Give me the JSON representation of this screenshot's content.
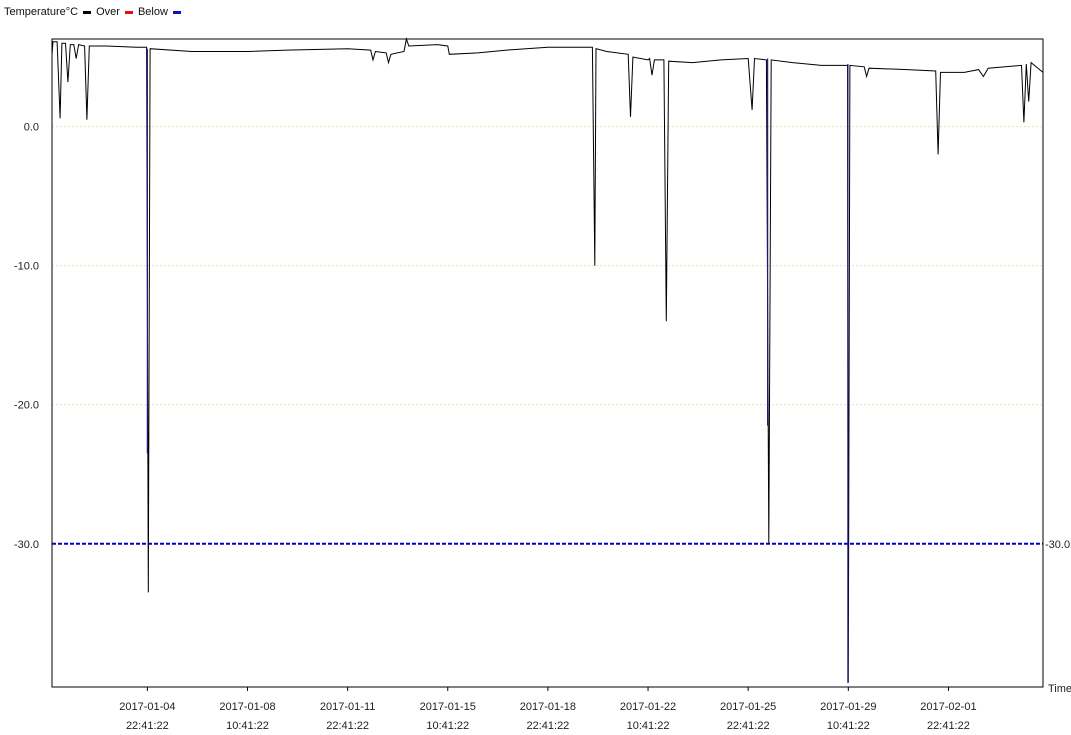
{
  "legend": {
    "label": "Temperature°C",
    "over_label": "Over",
    "below_label": "Below"
  },
  "colors": {
    "over": "#000000",
    "below": "#e01010",
    "below_swatch": "#1010c0",
    "grid": "#f5deb3",
    "threshold": "#0000c8",
    "axis": "#000000",
    "dip_series": "#1a1a80"
  },
  "chart_data": {
    "type": "line",
    "title": "",
    "xlabel": "Time",
    "ylabel": "Temperature°C",
    "ylim": [
      -40.3,
      6.3
    ],
    "xlim": [
      "2017-01-01 14:41",
      "2017-02-05 06:00"
    ],
    "grid": "horizontal dotted at 0, -10, -20",
    "y_ticks": [
      {
        "value": 0,
        "label": "0.0"
      },
      {
        "value": -10,
        "label": "-10.0"
      },
      {
        "value": -20,
        "label": "-20.0"
      },
      {
        "value": -30,
        "label": "-30.0"
      }
    ],
    "x_ticks": [
      {
        "date": "2017-01-04",
        "time": "22:41:22"
      },
      {
        "date": "2017-01-08",
        "time": "10:41:22"
      },
      {
        "date": "2017-01-11",
        "time": "22:41:22"
      },
      {
        "date": "2017-01-15",
        "time": "10:41:22"
      },
      {
        "date": "2017-01-18",
        "time": "22:41:22"
      },
      {
        "date": "2017-01-22",
        "time": "10:41:22"
      },
      {
        "date": "2017-01-25",
        "time": "22:41:22"
      },
      {
        "date": "2017-01-29",
        "time": "10:41:22"
      },
      {
        "date": "2017-02-01",
        "time": "22:41:22"
      }
    ],
    "threshold": {
      "value": -30.0,
      "label": "-30.0",
      "style": "dashed"
    },
    "series": [
      {
        "points": [
          [
            "2017-01-01 14:41",
            5.2
          ],
          [
            "2017-01-01 15:30",
            6.1
          ],
          [
            "2017-01-01 19:00",
            6.1
          ],
          [
            "2017-01-01 21:30",
            0.6
          ],
          [
            "2017-01-01 23:00",
            6.0
          ],
          [
            "2017-01-02 02:00",
            6.0
          ],
          [
            "2017-01-02 04:00",
            3.2
          ],
          [
            "2017-01-02 06:00",
            5.9
          ],
          [
            "2017-01-02 09:00",
            5.9
          ],
          [
            "2017-01-02 11:00",
            4.9
          ],
          [
            "2017-01-02 13:00",
            5.9
          ],
          [
            "2017-01-02 18:00",
            5.8
          ],
          [
            "2017-01-02 20:00",
            0.5
          ],
          [
            "2017-01-02 22:00",
            5.8
          ],
          [
            "2017-01-03 12:00",
            5.8
          ],
          [
            "2017-01-04 14:00",
            5.7
          ],
          [
            "2017-01-04 22:00",
            5.7
          ],
          [
            "2017-01-04 23:30",
            -33.5
          ],
          [
            "2017-01-05 01:00",
            5.6
          ],
          [
            "2017-01-06 12:00",
            5.4
          ],
          [
            "2017-01-08 10:41",
            5.4
          ],
          [
            "2017-01-09 20:00",
            5.5
          ],
          [
            "2017-01-11 22:41",
            5.6
          ],
          [
            "2017-01-12 18:00",
            5.5
          ],
          [
            "2017-01-12 20:00",
            4.8
          ],
          [
            "2017-01-12 22:00",
            5.4
          ],
          [
            "2017-01-13 07:00",
            5.3
          ],
          [
            "2017-01-13 09:00",
            4.6
          ],
          [
            "2017-01-13 11:00",
            5.2
          ],
          [
            "2017-01-13 22:00",
            5.4
          ],
          [
            "2017-01-14 00:00",
            6.3
          ],
          [
            "2017-01-14 02:00",
            5.8
          ],
          [
            "2017-01-15 02:00",
            5.9
          ],
          [
            "2017-01-15 10:41",
            5.8
          ],
          [
            "2017-01-15 12:00",
            5.2
          ],
          [
            "2017-01-16 12:00",
            5.3
          ],
          [
            "2017-01-17 12:00",
            5.5
          ],
          [
            "2017-01-18 22:41",
            5.7
          ],
          [
            "2017-01-20 12:00",
            5.7
          ],
          [
            "2017-01-20 14:00",
            -10.0
          ],
          [
            "2017-01-20 15:00",
            5.6
          ],
          [
            "2017-01-21 00:00",
            5.4
          ],
          [
            "2017-01-21 18:00",
            5.2
          ],
          [
            "2017-01-21 20:00",
            0.7
          ],
          [
            "2017-01-21 22:00",
            5.0
          ],
          [
            "2017-01-22 10:41",
            4.8
          ],
          [
            "2017-01-22 12:00",
            4.9
          ],
          [
            "2017-01-22 14:00",
            3.7
          ],
          [
            "2017-01-22 16:00",
            4.8
          ],
          [
            "2017-01-23 00:00",
            4.8
          ],
          [
            "2017-01-23 02:00",
            -14.0
          ],
          [
            "2017-01-23 04:00",
            4.7
          ],
          [
            "2017-01-24 00:00",
            4.6
          ],
          [
            "2017-01-25 00:00",
            4.8
          ],
          [
            "2017-01-25 22:41",
            4.9
          ],
          [
            "2017-01-26 02:00",
            1.2
          ],
          [
            "2017-01-26 04:00",
            4.9
          ],
          [
            "2017-01-26 14:00",
            4.8
          ],
          [
            "2017-01-26 16:00",
            -30.0
          ],
          [
            "2017-01-26 18:00",
            4.8
          ],
          [
            "2017-01-27 12:00",
            4.6
          ],
          [
            "2017-01-28 12:00",
            4.4
          ],
          [
            "2017-01-29 10:00",
            4.4
          ],
          [
            "2017-01-29 10:41",
            -40.0
          ],
          [
            "2017-01-29 12:00",
            4.4
          ],
          [
            "2017-01-30 00:00",
            4.3
          ],
          [
            "2017-01-30 02:00",
            3.6
          ],
          [
            "2017-01-30 04:00",
            4.2
          ],
          [
            "2017-01-31 12:00",
            4.1
          ],
          [
            "2017-02-01 12:00",
            4.0
          ],
          [
            "2017-02-01 14:00",
            -2.0
          ],
          [
            "2017-02-01 16:00",
            3.9
          ],
          [
            "2017-02-02 12:00",
            3.9
          ],
          [
            "2017-02-03 00:00",
            4.1
          ],
          [
            "2017-02-03 04:00",
            3.6
          ],
          [
            "2017-02-03 08:00",
            4.2
          ],
          [
            "2017-02-04 12:00",
            4.4
          ],
          [
            "2017-02-04 14:00",
            0.3
          ],
          [
            "2017-02-04 16:00",
            4.5
          ],
          [
            "2017-02-04 18:00",
            1.8
          ],
          [
            "2017-02-04 20:00",
            4.6
          ],
          [
            "2017-02-05 06:00",
            3.9
          ]
        ]
      },
      {
        "points": [
          [
            "2017-01-04 22:41",
            5.6
          ],
          [
            "2017-01-04 22:41",
            -23.5
          ],
          [
            "2017-01-26 15:00",
            4.9
          ],
          [
            "2017-01-26 15:00",
            -21.5
          ],
          [
            "2017-01-29 10:20",
            4.5
          ],
          [
            "2017-01-29 10:20",
            -40.0
          ]
        ]
      }
    ]
  }
}
